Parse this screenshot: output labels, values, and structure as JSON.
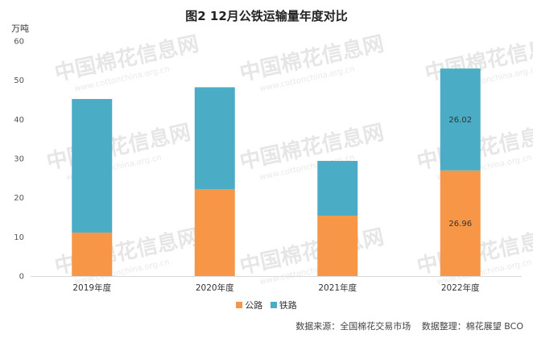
{
  "header": {
    "title": "图2 12月公铁运输量年度对比",
    "y_unit": "万吨"
  },
  "chart_data": {
    "type": "bar",
    "stacked": true,
    "categories": [
      "2019年度",
      "2020年度",
      "2021年度",
      "2022年度"
    ],
    "series": [
      {
        "name": "公路",
        "color": "#f79646",
        "values": [
          11.1,
          22.2,
          15.4,
          26.96
        ]
      },
      {
        "name": "铁路",
        "color": "#4bacc6",
        "values": [
          34.1,
          26.0,
          14.0,
          26.02
        ]
      }
    ],
    "data_labels": [
      {
        "series": "公路",
        "category": "2022年度",
        "text": "26.96"
      },
      {
        "series": "铁路",
        "category": "2022年度",
        "text": "26.02"
      }
    ],
    "y_ticks": [
      "0",
      "10",
      "20",
      "30",
      "40",
      "50",
      "60"
    ],
    "ylim": [
      0,
      60
    ],
    "grid": false,
    "legend_position": "bottom"
  },
  "watermark": {
    "text": "中国棉花信息网",
    "url": "www.cottonchina.org.cn"
  },
  "footer": {
    "source": "数据来源：全国棉花交易市场",
    "compiled_by": "数据整理：棉花展望 BCO"
  }
}
